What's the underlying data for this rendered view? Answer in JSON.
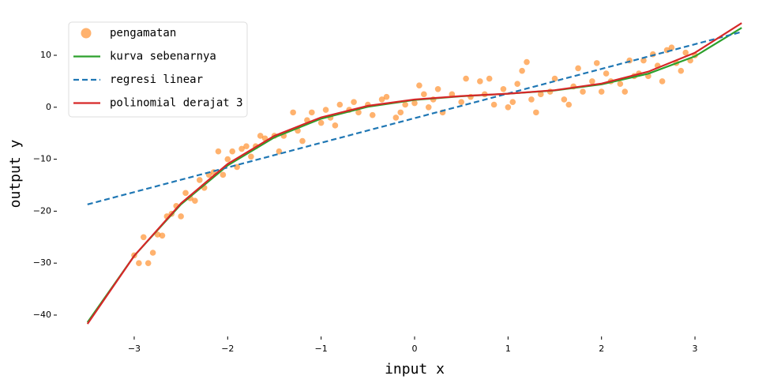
{
  "chart_data": {
    "type": "scatter",
    "xlabel": "input x",
    "ylabel": "output y",
    "xlim": [
      -3.76,
      3.76
    ],
    "ylim": [
      -43.2,
      17.6
    ],
    "xticks": [
      {
        "value": -3,
        "label": "−3"
      },
      {
        "value": -2,
        "label": "−2"
      },
      {
        "value": -1,
        "label": "−1"
      },
      0,
      1,
      2,
      3
    ],
    "yticks": [
      {
        "value": -40,
        "label": "−40"
      },
      {
        "value": -30,
        "label": "−30"
      },
      {
        "value": -20,
        "label": "−20"
      },
      {
        "value": -10,
        "label": "−10"
      },
      0,
      10
    ],
    "legend": "upper left",
    "series": [
      {
        "name": "pengamatan",
        "type": "scatter",
        "color": "#ff7f0e",
        "x": [
          -3.0,
          -2.95,
          -2.9,
          -2.85,
          -2.8,
          -2.75,
          -2.7,
          -2.65,
          -2.6,
          -2.55,
          -2.5,
          -2.45,
          -2.4,
          -2.35,
          -2.3,
          -2.25,
          -2.2,
          -2.15,
          -2.1,
          -2.05,
          -2.0,
          -1.95,
          -1.9,
          -1.85,
          -1.8,
          -1.75,
          -1.7,
          -1.65,
          -1.6,
          -1.5,
          -1.45,
          -1.4,
          -1.3,
          -1.25,
          -1.2,
          -1.15,
          -1.1,
          -1.0,
          -0.95,
          -0.9,
          -0.85,
          -0.8,
          -0.7,
          -0.65,
          -0.6,
          -0.5,
          -0.45,
          -0.35,
          -0.3,
          -0.2,
          -0.15,
          -0.1,
          0.0,
          0.05,
          0.1,
          0.15,
          0.2,
          0.25,
          0.3,
          0.4,
          0.5,
          0.55,
          0.6,
          0.7,
          0.75,
          0.8,
          0.85,
          0.95,
          1.0,
          1.05,
          1.1,
          1.15,
          1.2,
          1.25,
          1.3,
          1.35,
          1.45,
          1.5,
          1.6,
          1.65,
          1.7,
          1.75,
          1.8,
          1.9,
          1.95,
          2.0,
          2.05,
          2.1,
          2.2,
          2.25,
          2.3,
          2.35,
          2.4,
          2.45,
          2.5,
          2.55,
          2.6,
          2.65,
          2.7,
          2.75,
          2.8,
          2.85,
          2.9,
          2.95,
          3.0
        ],
        "values": [
          -28.5,
          -30,
          -25,
          -30,
          -28,
          -24.5,
          -24.7,
          -21,
          -20.5,
          -19,
          -21,
          -16.5,
          -17.5,
          -18,
          -14,
          -15.5,
          -13,
          -12.5,
          -8.5,
          -13,
          -10,
          -8.5,
          -11.5,
          -8,
          -7.5,
          -9.5,
          -7.5,
          -5.5,
          -6,
          -5.5,
          -8.5,
          -5.5,
          -1,
          -4.5,
          -6.5,
          -2.5,
          -1,
          -3,
          -0.5,
          -2,
          -3.5,
          0.5,
          -0.5,
          1,
          -1,
          0.5,
          -1.5,
          1.5,
          2,
          -2,
          -1,
          0.5,
          0.8,
          4.2,
          2.5,
          0,
          1.5,
          3.5,
          -1,
          2.5,
          1,
          5.5,
          2,
          5,
          2.5,
          5.5,
          0.5,
          3.5,
          0,
          1,
          4.5,
          7,
          8.7,
          1.5,
          -1,
          2.5,
          3,
          5.5,
          1.5,
          0.5,
          4,
          7.5,
          3,
          5,
          8.5,
          3,
          6.5,
          5,
          4.5,
          3,
          9,
          6,
          6.5,
          9,
          6,
          10.2,
          8,
          5,
          11,
          11.5,
          8.5,
          7,
          10.5,
          9,
          10
        ]
      },
      {
        "name": "kurva sebenarnya",
        "type": "line",
        "color": "#2ca02c",
        "dash": false,
        "x": [
          -3.5,
          -3,
          -2.5,
          -2,
          -1.5,
          -1,
          -0.5,
          0,
          0.5,
          1,
          1.5,
          2,
          2.5,
          3,
          3.5
        ],
        "values": [
          -41.4,
          -28.6,
          -18.7,
          -11.2,
          -5.8,
          -2.2,
          0.09,
          1.4,
          2.11,
          2.6,
          3.24,
          4.4,
          6.46,
          9.8,
          15.3
        ]
      },
      {
        "name": "regresi linear",
        "type": "line",
        "color": "#1f77b4",
        "dash": true,
        "x": [
          -3.5,
          3.5
        ],
        "values": [
          -18.7,
          14.5
        ]
      },
      {
        "name": "polinomial derajat 3",
        "type": "line",
        "color": "#d62728",
        "dash": false,
        "x": [
          -3.5,
          -3,
          -2.5,
          -2,
          -1.5,
          -1,
          -0.5,
          0,
          0.5,
          1,
          1.5,
          2,
          2.5,
          3,
          3.5
        ],
        "values": [
          -41.7,
          -28.6,
          -18.5,
          -10.9,
          -5.5,
          -1.95,
          0.27,
          1.5,
          2.15,
          2.61,
          3.28,
          4.56,
          6.85,
          10.5,
          16.2
        ]
      }
    ]
  }
}
